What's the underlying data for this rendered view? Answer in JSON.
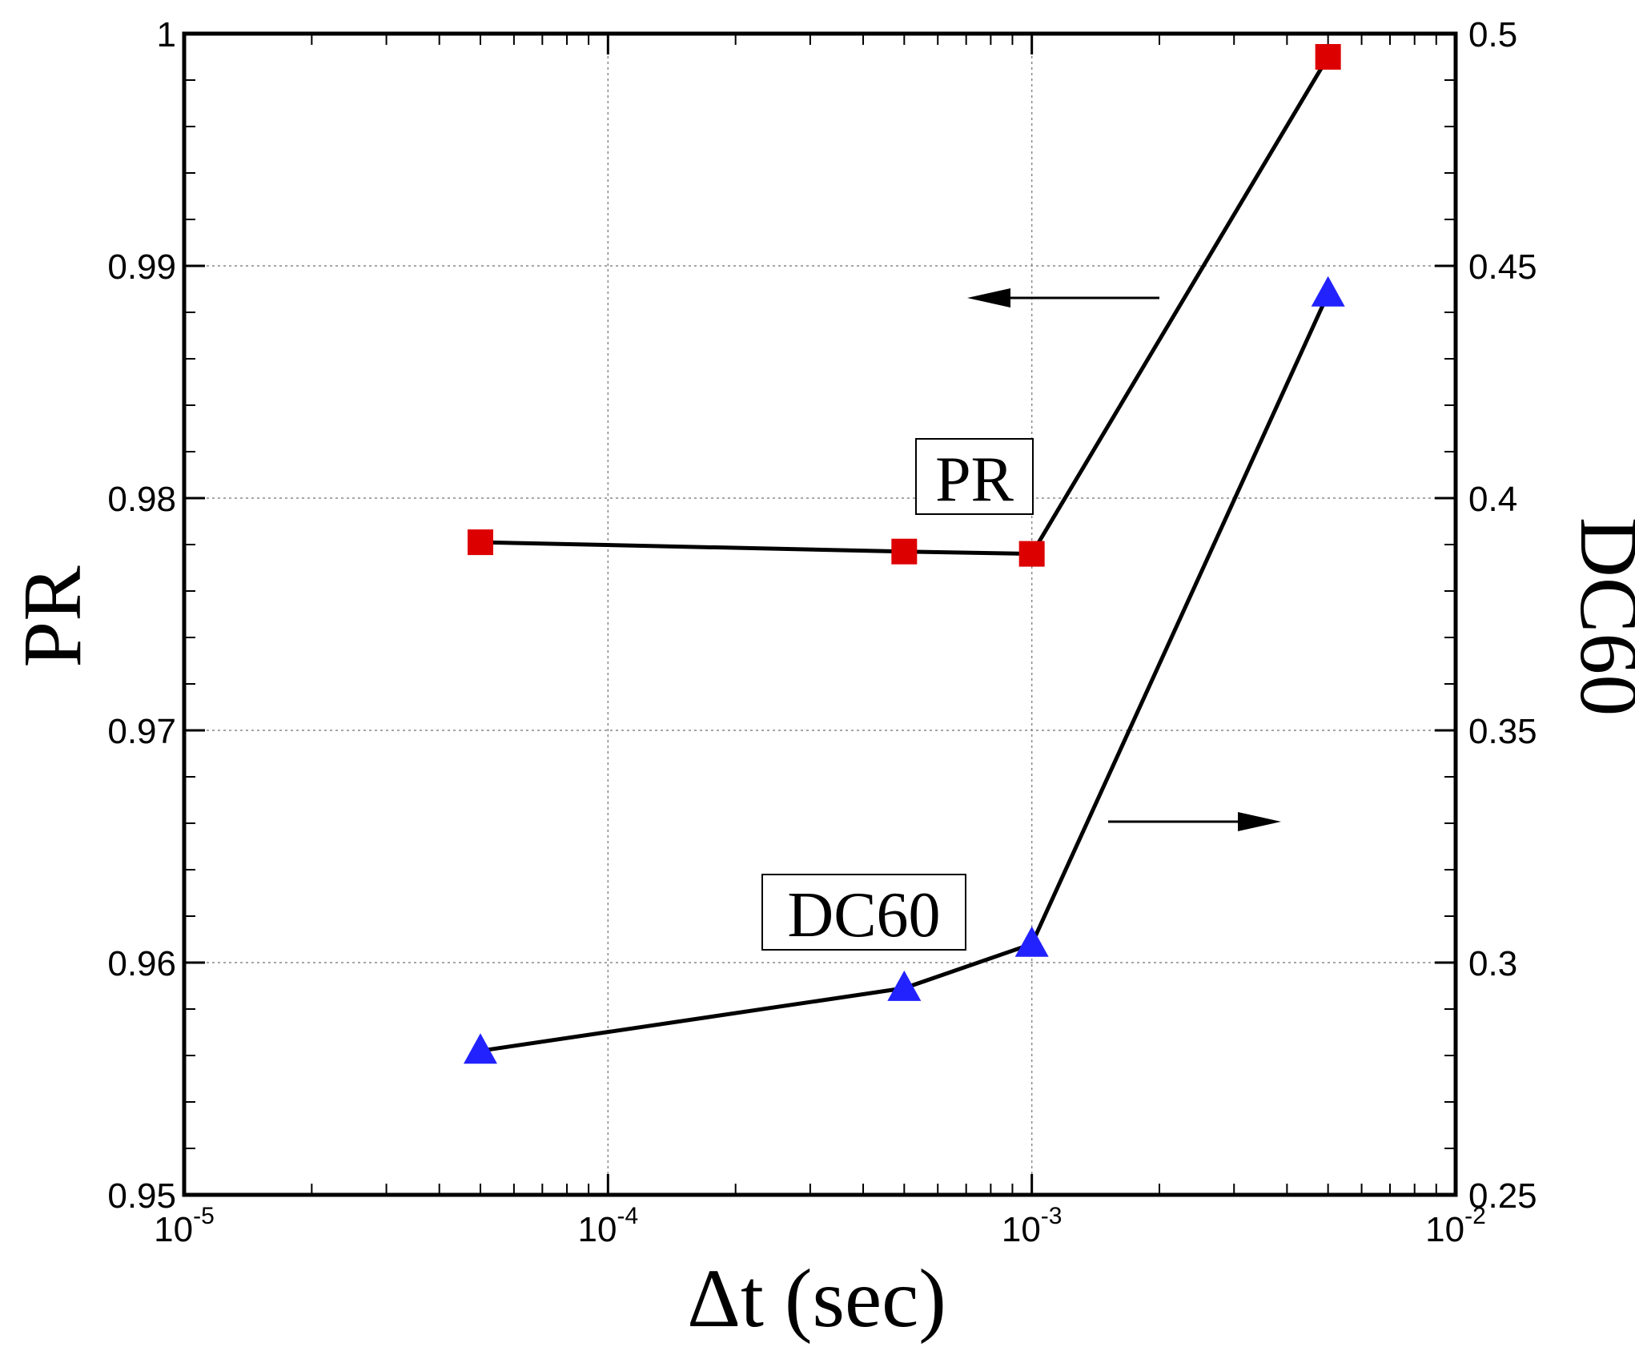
{
  "chart_data": {
    "type": "line",
    "x_scale": "log",
    "xlim": [
      1e-05,
      0.01
    ],
    "x_ticks": [
      {
        "value": 1e-05,
        "base": "10",
        "exp": "-5"
      },
      {
        "value": 0.0001,
        "base": "10",
        "exp": "-4"
      },
      {
        "value": 0.001,
        "base": "10",
        "exp": "-3"
      },
      {
        "value": 0.01,
        "base": "10",
        "exp": "-2"
      }
    ],
    "xlabel": "Δt (sec)",
    "y_left": {
      "label": "PR",
      "lim": [
        0.95,
        1
      ],
      "ticks": [
        "0.95",
        "0.96",
        "0.97",
        "0.98",
        "0.99",
        "1"
      ]
    },
    "y_right": {
      "label": "DC60",
      "lim": [
        0.25,
        0.5
      ],
      "ticks": [
        "0.25",
        "0.3",
        "0.35",
        "0.4",
        "0.45",
        "0.5"
      ]
    },
    "grid": true,
    "series": [
      {
        "name": "PR",
        "axis": "left",
        "marker": "square",
        "color": "#dd0000",
        "line_color": "#000000",
        "x": [
          5e-05,
          0.0005,
          0.001,
          0.005
        ],
        "y": [
          0.9781,
          0.9777,
          0.9776,
          0.999
        ]
      },
      {
        "name": "DC60",
        "axis": "right",
        "marker": "triangle",
        "color": "#2222ff",
        "line_color": "#000000",
        "x": [
          5e-05,
          0.0005,
          0.001,
          0.005
        ],
        "y": [
          0.281,
          0.2945,
          0.304,
          0.444
        ]
      }
    ],
    "annotations": [
      {
        "text": "PR",
        "boxed": true
      },
      {
        "text": "DC60",
        "boxed": true
      }
    ],
    "arrows": [
      {
        "points_to": "left axis",
        "series": "PR"
      },
      {
        "points_to": "right axis",
        "series": "DC60"
      }
    ]
  }
}
